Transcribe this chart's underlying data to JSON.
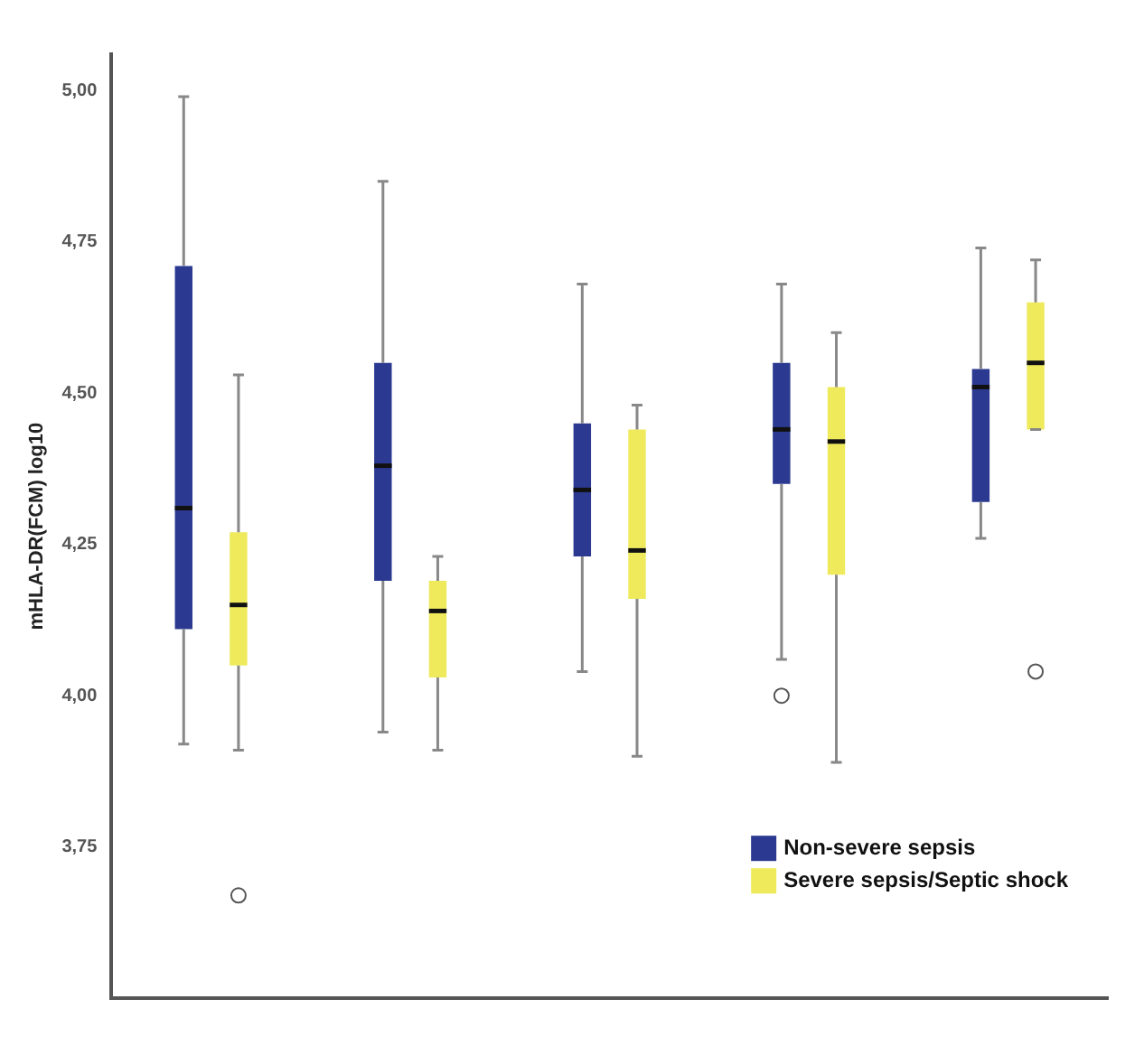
{
  "chart_data": {
    "type": "box",
    "ylabel": "mHLA-DR(FCM) log10",
    "categories": [
      null,
      null,
      null,
      null,
      null
    ],
    "ylim": [
      3.5,
      5.06
    ],
    "yticks": [
      {
        "value": 3.75,
        "label": "3,75"
      },
      {
        "value": 4,
        "label": "4,00"
      },
      {
        "value": 4.25,
        "label": "4,25"
      },
      {
        "value": 4.5,
        "label": "4,50"
      },
      {
        "value": 4.75,
        "label": "4,75"
      },
      {
        "value": 5,
        "label": "5,00"
      }
    ],
    "grid": false,
    "legend": "bottom right",
    "series": [
      {
        "name": "Non-severe sepsis",
        "color": "#2b3990",
        "boxes": [
          {
            "low": 3.92,
            "q1": 4.11,
            "median": 4.31,
            "q3": 4.71,
            "high": 4.99
          },
          {
            "low": 3.94,
            "q1": 4.19,
            "median": 4.38,
            "q3": 4.55,
            "high": 4.85
          },
          {
            "low": 4.04,
            "q1": 4.23,
            "median": 4.34,
            "q3": 4.45,
            "high": 4.68
          },
          {
            "low": 4.06,
            "q1": 4.35,
            "median": 4.44,
            "q3": 4.55,
            "high": 4.68,
            "outliers": [
              4.0
            ]
          },
          {
            "low": 4.26,
            "q1": 4.32,
            "median": 4.51,
            "q3": 4.54,
            "high": 4.74
          }
        ]
      },
      {
        "name": "Severe sepsis/Septic shock",
        "color": "#eeea5c",
        "boxes": [
          {
            "low": 3.91,
            "q1": 4.05,
            "median": 4.15,
            "q3": 4.27,
            "high": 4.53,
            "outliers": [
              3.67
            ]
          },
          {
            "low": 3.91,
            "q1": 4.03,
            "median": 4.14,
            "q3": 4.19,
            "high": 4.23
          },
          {
            "low": 3.9,
            "q1": 4.16,
            "median": 4.24,
            "q3": 4.44,
            "high": 4.48
          },
          {
            "low": 3.89,
            "q1": 4.2,
            "median": 4.42,
            "q3": 4.51,
            "high": 4.6
          },
          {
            "low": 4.44,
            "q1": 4.44,
            "median": 4.55,
            "q3": 4.65,
            "high": 4.72,
            "outliers": [
              4.04
            ]
          }
        ]
      }
    ]
  }
}
